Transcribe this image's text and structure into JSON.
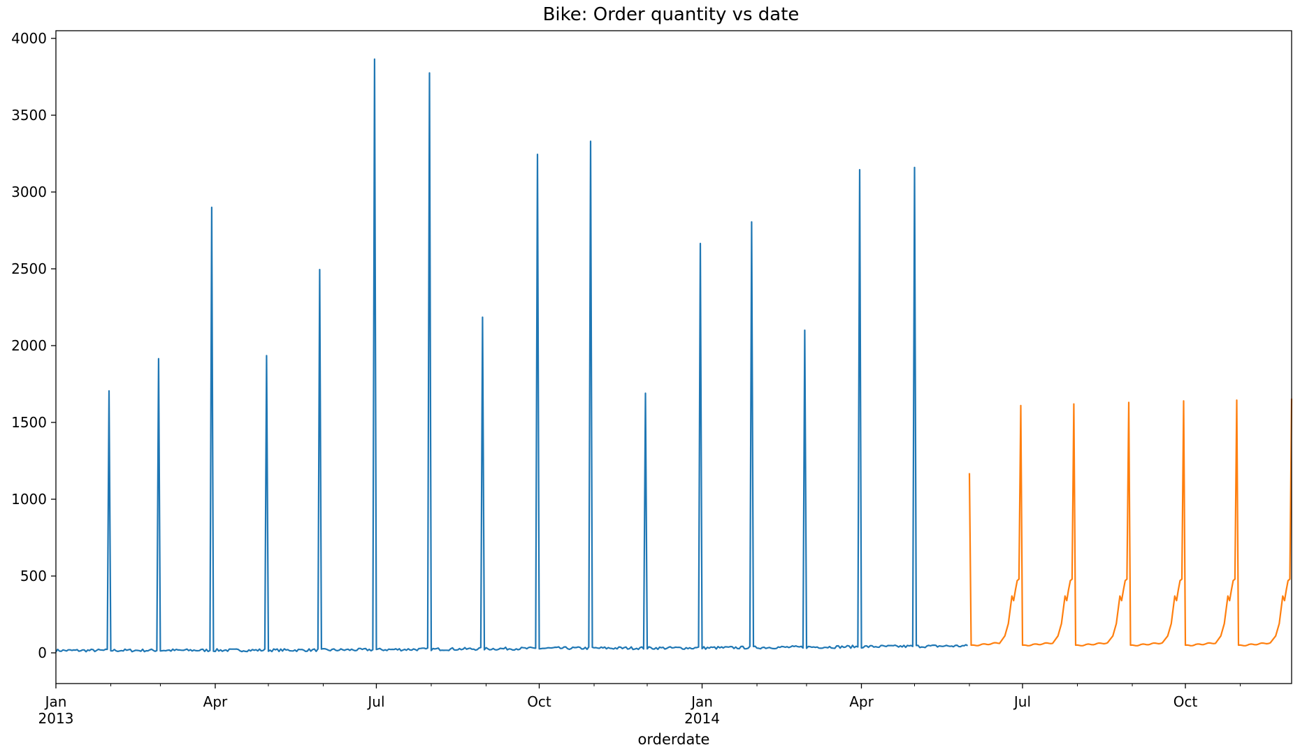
{
  "chart_data": {
    "type": "line",
    "title": "Bike: Order quantity vs date",
    "xlabel": "orderdate",
    "ylabel": "",
    "x_range": [
      "2013-01-01",
      "2014-11-30"
    ],
    "ylim": [
      -200,
      4050
    ],
    "y_ticks": [
      0,
      500,
      1000,
      1500,
      2000,
      2500,
      3000,
      3500,
      4000
    ],
    "x_ticks": [
      {
        "date": "2013-01-01",
        "label": "Jan",
        "sublabel": "2013"
      },
      {
        "date": "2013-04-01",
        "label": "Apr",
        "sublabel": ""
      },
      {
        "date": "2013-07-01",
        "label": "Jul",
        "sublabel": ""
      },
      {
        "date": "2013-10-01",
        "label": "Oct",
        "sublabel": ""
      },
      {
        "date": "2014-01-01",
        "label": "Jan",
        "sublabel": "2014"
      },
      {
        "date": "2014-04-01",
        "label": "Apr",
        "sublabel": ""
      },
      {
        "date": "2014-07-01",
        "label": "Jul",
        "sublabel": ""
      },
      {
        "date": "2014-10-01",
        "label": "Oct",
        "sublabel": ""
      }
    ],
    "minor_x_ticks": [
      "2013-02-01",
      "2013-03-01",
      "2013-05-01",
      "2013-06-01",
      "2013-08-01",
      "2013-09-01",
      "2013-11-01",
      "2013-12-01",
      "2014-02-01",
      "2014-03-01",
      "2014-05-01",
      "2014-06-01",
      "2014-08-01",
      "2014-09-01",
      "2014-11-01"
    ],
    "grid": false,
    "legend": "none",
    "series": [
      {
        "color": "#1f77b4",
        "baseline": [
          {
            "date": "2013-01-01",
            "value": 15
          },
          {
            "date": "2013-06-01",
            "value": 18
          },
          {
            "date": "2013-10-15",
            "value": 30
          },
          {
            "date": "2014-01-01",
            "value": 32
          },
          {
            "date": "2014-04-01",
            "value": 40
          },
          {
            "date": "2014-05-31",
            "value": 45
          }
        ],
        "spikes": [
          {
            "date": "2013-01-31",
            "value": 1705
          },
          {
            "date": "2013-02-28",
            "value": 1915
          },
          {
            "date": "2013-03-30",
            "value": 2900
          },
          {
            "date": "2013-04-30",
            "value": 1935
          },
          {
            "date": "2013-05-30",
            "value": 2495
          },
          {
            "date": "2013-06-30",
            "value": 3865
          },
          {
            "date": "2013-07-31",
            "value": 3775
          },
          {
            "date": "2013-08-30",
            "value": 2185
          },
          {
            "date": "2013-09-30",
            "value": 3245
          },
          {
            "date": "2013-10-30",
            "value": 3330
          },
          {
            "date": "2013-11-30",
            "value": 1690
          },
          {
            "date": "2013-12-31",
            "value": 2665
          },
          {
            "date": "2014-01-29",
            "value": 2805
          },
          {
            "date": "2014-02-28",
            "value": 2100
          },
          {
            "date": "2014-03-31",
            "value": 3145
          },
          {
            "date": "2014-05-01",
            "value": 3160
          }
        ],
        "end": "2014-05-31"
      },
      {
        "color": "#ff7f0e",
        "start": {
          "date": "2014-06-01",
          "value": 1170
        },
        "spikes": [
          {
            "date": "2014-06-30",
            "value": 1610
          },
          {
            "date": "2014-07-30",
            "value": 1620
          },
          {
            "date": "2014-08-30",
            "value": 1630
          },
          {
            "date": "2014-09-30",
            "value": 1640
          },
          {
            "date": "2014-10-30",
            "value": 1645
          },
          {
            "date": "2014-11-30",
            "value": 1655
          }
        ],
        "pre_spike_pattern": {
          "trough": 45,
          "bump": 370,
          "step": 470
        },
        "end": "2014-11-30"
      }
    ]
  }
}
